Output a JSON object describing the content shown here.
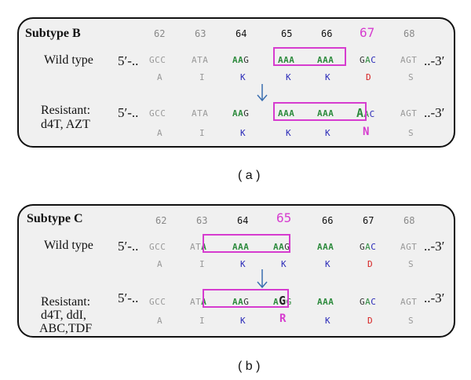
{
  "panel_a": {
    "title": "Subtype B",
    "positions": [
      "62",
      "63",
      "64",
      "65",
      "66",
      "67",
      "68"
    ],
    "wild_label": "Wild type",
    "wild_prefix": "5′-..",
    "wild_codons": [
      "GCC",
      "ATA",
      "AAG",
      "AAA",
      "AAA",
      "GAC",
      "AGT"
    ],
    "wild_suffix": "..-3′",
    "wild_aa": [
      "A",
      "I",
      "K",
      "K",
      "K",
      "D",
      "S"
    ],
    "res_label_1": "Resistant:",
    "res_label_2": "d4T, AZT",
    "res_prefix": "5′-..",
    "res_codons": [
      "GCC",
      "ATA",
      "AAG",
      "AAA",
      "AAA",
      "AAC",
      "AGT"
    ],
    "res_suffix": "..-3′",
    "res_aa": [
      "A",
      "I",
      "K",
      "K",
      "K",
      "N",
      "S"
    ],
    "caption": "( a )"
  },
  "panel_b": {
    "title": "Subtype C",
    "positions": [
      "62",
      "63",
      "64",
      "65",
      "66",
      "67",
      "68"
    ],
    "wild_label": "Wild type",
    "wild_prefix": "5′-..",
    "wild_codons": [
      "GCC",
      "ATA",
      "AAA",
      "AAG",
      "AAA",
      "GAC",
      "AGT"
    ],
    "wild_suffix": "..-3′",
    "wild_aa": [
      "A",
      "I",
      "K",
      "K",
      "K",
      "D",
      "S"
    ],
    "res_label_1": "Resistant:",
    "res_label_2": "d4T, ddI,",
    "res_label_3": "ABC,TDF",
    "res_prefix": "5′-..",
    "res_codons": [
      "GCC",
      "ATA",
      "AAG",
      "AGG",
      "AAA",
      "GAC",
      "AGT"
    ],
    "res_suffix": "..-3′",
    "res_aa": [
      "A",
      "I",
      "K",
      "R",
      "K",
      "D",
      "S"
    ],
    "caption": "( b )"
  },
  "colors": {
    "highlight": "#d63ccf",
    "green": "#2e8b3e",
    "blue": "#2a2ab8",
    "red": "#d62020",
    "arrow": "#3b6fb0"
  }
}
